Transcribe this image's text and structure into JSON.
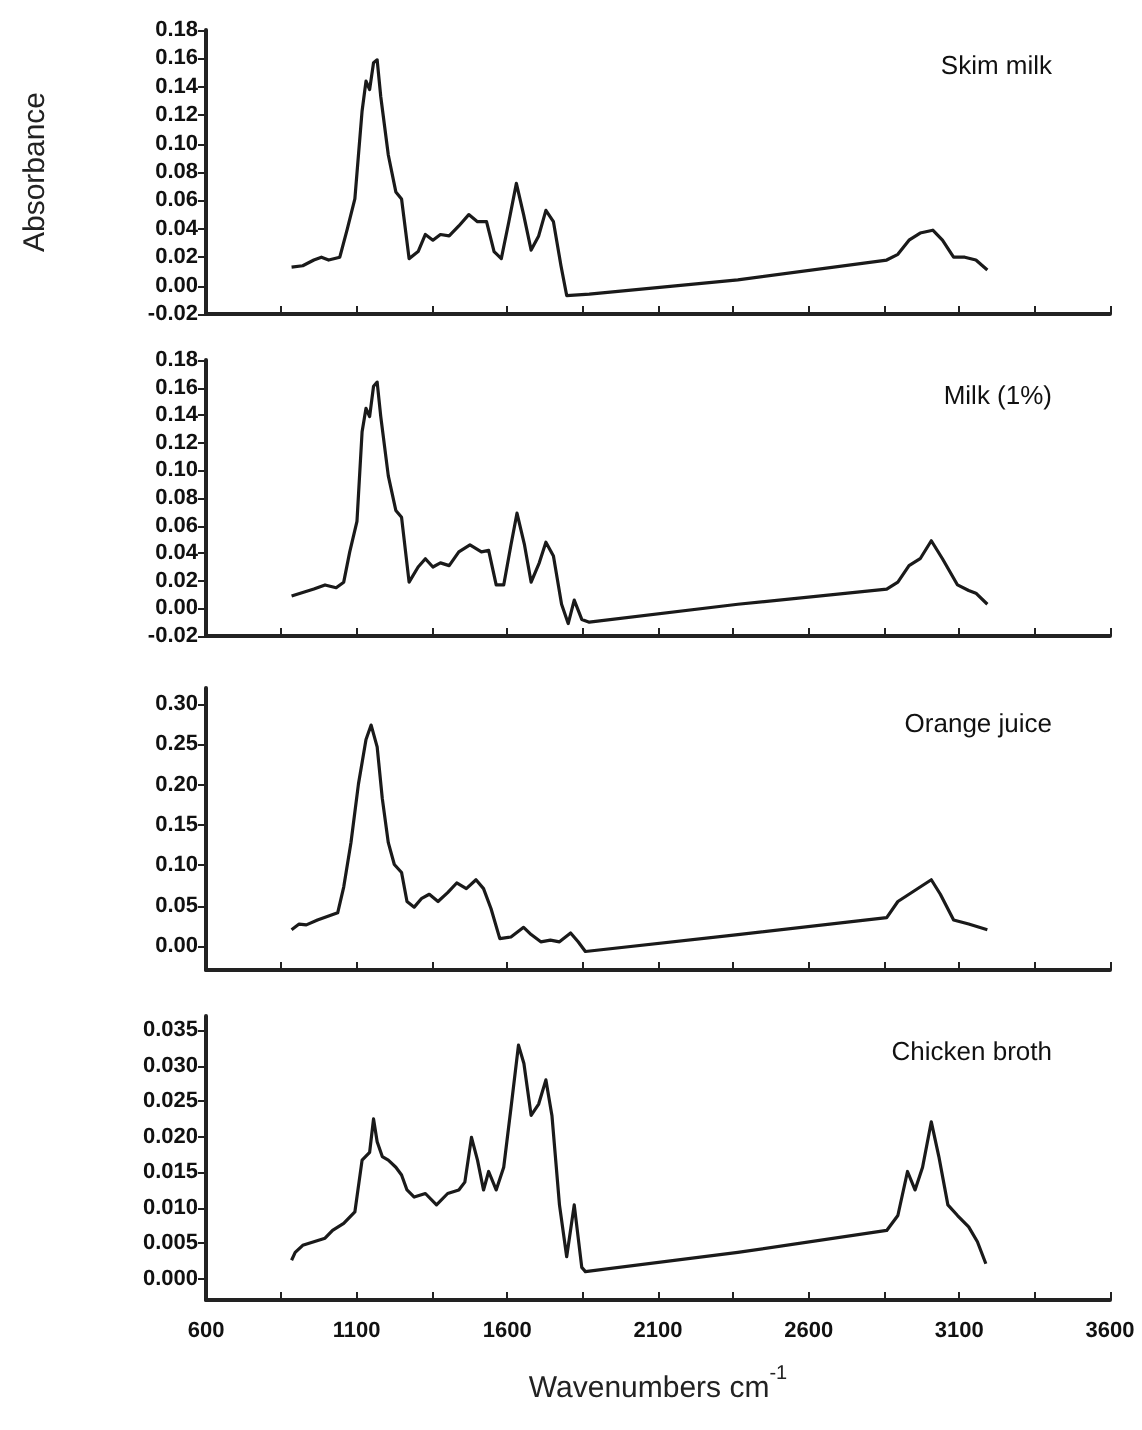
{
  "chart_data": [
    {
      "type": "line",
      "title": "Skim milk",
      "ylabel": "Absorbance",
      "color": "#1a1a1a",
      "marker": "none",
      "tick_labels": "y",
      "x": [
        884,
        921,
        958,
        983,
        1007,
        1044,
        1069,
        1094,
        1118,
        1131,
        1143,
        1156,
        1168,
        1180,
        1205,
        1230,
        1249,
        1274,
        1304,
        1328,
        1353,
        1378,
        1407,
        1439,
        1472,
        1501,
        1531,
        1556,
        1580,
        1605,
        1630,
        1654,
        1679,
        1704,
        1728,
        1753,
        1778,
        1797,
        1872,
        2365,
        2859,
        2896,
        2933,
        2970,
        3012,
        3044,
        3081,
        3118,
        3155,
        3193
      ],
      "values": [
        0.013,
        0.014,
        0.018,
        0.02,
        0.018,
        0.02,
        0.04,
        0.061,
        0.123,
        0.144,
        0.138,
        0.157,
        0.159,
        0.133,
        0.092,
        0.066,
        0.061,
        0.019,
        0.024,
        0.036,
        0.032,
        0.036,
        0.035,
        0.042,
        0.05,
        0.045,
        0.045,
        0.024,
        0.019,
        0.045,
        0.072,
        0.05,
        0.025,
        0.035,
        0.053,
        0.045,
        0.014,
        -0.007,
        -0.006,
        0.004,
        0.018,
        0.022,
        0.032,
        0.037,
        0.039,
        0.032,
        0.02,
        0.02,
        0.018,
        0.011
      ],
      "xlim": [
        600,
        3600
      ],
      "xticks": [
        600,
        {
          "value": 850,
          "label": null
        },
        {
          "value": 1100,
          "label": null
        },
        {
          "value": 1350,
          "label": null
        },
        {
          "value": 1600,
          "label": null
        },
        {
          "value": 1850,
          "label": null
        },
        {
          "value": 2100,
          "label": null
        },
        {
          "value": 2350,
          "label": null
        },
        {
          "value": 2600,
          "label": null
        },
        {
          "value": 2850,
          "label": null
        },
        {
          "value": 3100,
          "label": null
        },
        {
          "value": 3350,
          "label": null
        },
        {
          "value": 3600,
          "label": null
        }
      ],
      "ylim": [
        -0.02,
        0.18
      ],
      "yticks": [
        {
          "value": -0.02,
          "label": "-0.02"
        },
        {
          "value": 0,
          "label": "0.00"
        },
        {
          "value": 0.02,
          "label": "0.02"
        },
        {
          "value": 0.04,
          "label": "0.04"
        },
        {
          "value": 0.06,
          "label": "0.06"
        },
        {
          "value": 0.08,
          "label": "0.08"
        },
        {
          "value": 0.1,
          "label": "0.10"
        },
        {
          "value": 0.12,
          "label": "0.12"
        },
        {
          "value": 0.14,
          "label": "0.14"
        },
        {
          "value": 0.16,
          "label": "0.16"
        },
        {
          "value": 0.18,
          "label": "0.18"
        }
      ]
    },
    {
      "type": "line",
      "title": "Milk (1%)",
      "color": "#1a1a1a",
      "marker": "none",
      "tick_labels": "y",
      "x": [
        884,
        958,
        995,
        1032,
        1057,
        1077,
        1101,
        1118,
        1131,
        1143,
        1156,
        1168,
        1180,
        1205,
        1230,
        1249,
        1274,
        1304,
        1328,
        1353,
        1378,
        1407,
        1439,
        1476,
        1514,
        1538,
        1563,
        1588,
        1612,
        1632,
        1657,
        1679,
        1706,
        1728,
        1753,
        1780,
        1802,
        1822,
        1847,
        1872,
        2365,
        2859,
        2896,
        2933,
        2970,
        3007,
        3044,
        3094,
        3131,
        3155,
        3193
      ],
      "values": [
        0.009,
        0.014,
        0.017,
        0.015,
        0.019,
        0.041,
        0.063,
        0.128,
        0.145,
        0.139,
        0.161,
        0.164,
        0.139,
        0.096,
        0.071,
        0.066,
        0.019,
        0.03,
        0.036,
        0.03,
        0.033,
        0.031,
        0.041,
        0.046,
        0.041,
        0.042,
        0.017,
        0.017,
        0.046,
        0.069,
        0.046,
        0.019,
        0.033,
        0.048,
        0.038,
        0.003,
        -0.011,
        0.006,
        -0.008,
        -0.01,
        0.003,
        0.014,
        0.019,
        0.031,
        0.036,
        0.049,
        0.036,
        0.017,
        0.013,
        0.011,
        0.003
      ],
      "xlim": [
        600,
        3600
      ],
      "xticks": [
        600,
        {
          "value": 850,
          "label": null
        },
        {
          "value": 1100,
          "label": null
        },
        {
          "value": 1350,
          "label": null
        },
        {
          "value": 1600,
          "label": null
        },
        {
          "value": 1850,
          "label": null
        },
        {
          "value": 2100,
          "label": null
        },
        {
          "value": 2350,
          "label": null
        },
        {
          "value": 2600,
          "label": null
        },
        {
          "value": 2850,
          "label": null
        },
        {
          "value": 3100,
          "label": null
        },
        {
          "value": 3350,
          "label": null
        },
        {
          "value": 3600,
          "label": null
        }
      ],
      "ylim": [
        -0.02,
        0.18
      ],
      "yticks": [
        {
          "value": -0.02,
          "label": "-0.02"
        },
        {
          "value": 0,
          "label": "0.00"
        },
        {
          "value": 0.02,
          "label": "0.02"
        },
        {
          "value": 0.04,
          "label": "0.04"
        },
        {
          "value": 0.06,
          "label": "0.06"
        },
        {
          "value": 0.08,
          "label": "0.08"
        },
        {
          "value": 0.1,
          "label": "0.10"
        },
        {
          "value": 0.12,
          "label": "0.12"
        },
        {
          "value": 0.14,
          "label": "0.14"
        },
        {
          "value": 0.16,
          "label": "0.16"
        },
        {
          "value": 0.18,
          "label": "0.18"
        }
      ]
    },
    {
      "type": "line",
      "title": "Orange juice",
      "color": "#1a1a1a",
      "marker": "none",
      "tick_labels": "y",
      "x": [
        884,
        909,
        933,
        970,
        1007,
        1037,
        1057,
        1081,
        1106,
        1131,
        1148,
        1168,
        1185,
        1205,
        1225,
        1249,
        1267,
        1291,
        1316,
        1341,
        1370,
        1402,
        1432,
        1464,
        1496,
        1521,
        1546,
        1575,
        1612,
        1654,
        1679,
        1711,
        1743,
        1773,
        1810,
        1835,
        1859,
        2365,
        2859,
        2896,
        2933,
        2970,
        3007,
        3037,
        3081,
        3131,
        3193
      ],
      "values": [
        0.02,
        0.027,
        0.026,
        0.032,
        0.037,
        0.041,
        0.073,
        0.128,
        0.201,
        0.256,
        0.274,
        0.247,
        0.183,
        0.128,
        0.101,
        0.091,
        0.055,
        0.048,
        0.059,
        0.064,
        0.055,
        0.066,
        0.078,
        0.071,
        0.082,
        0.071,
        0.046,
        0.009,
        0.011,
        0.023,
        0.014,
        0.005,
        0.007,
        0.005,
        0.016,
        0.005,
        -0.007,
        0.014,
        0.035,
        0.055,
        0.064,
        0.073,
        0.082,
        0.064,
        0.032,
        0.027,
        0.02
      ],
      "xlim": [
        600,
        3600
      ],
      "xticks": [
        600,
        {
          "value": 850,
          "label": null
        },
        {
          "value": 1100,
          "label": null
        },
        {
          "value": 1350,
          "label": null
        },
        {
          "value": 1600,
          "label": null
        },
        {
          "value": 1850,
          "label": null
        },
        {
          "value": 2100,
          "label": null
        },
        {
          "value": 2350,
          "label": null
        },
        {
          "value": 2600,
          "label": null
        },
        {
          "value": 2850,
          "label": null
        },
        {
          "value": 3100,
          "label": null
        },
        {
          "value": 3350,
          "label": null
        },
        {
          "value": 3600,
          "label": null
        }
      ],
      "ylim": [
        -0.03,
        0.32
      ],
      "yticks": [
        {
          "value": 0,
          "label": "0.00"
        },
        {
          "value": 0.05,
          "label": "0.05"
        },
        {
          "value": 0.1,
          "label": "0.10"
        },
        {
          "value": 0.15,
          "label": "0.15"
        },
        {
          "value": 0.2,
          "label": "0.20"
        },
        {
          "value": 0.25,
          "label": "0.25"
        },
        {
          "value": 0.3,
          "label": "0.30"
        }
      ]
    },
    {
      "type": "line",
      "title": "Chicken broth",
      "xlabel": "Wavenumbers cm$^{-1}$",
      "color": "#1a1a1a",
      "marker": "none",
      "x": [
        884,
        896,
        921,
        958,
        995,
        1020,
        1057,
        1094,
        1118,
        1143,
        1156,
        1168,
        1185,
        1205,
        1230,
        1249,
        1267,
        1291,
        1328,
        1365,
        1402,
        1439,
        1459,
        1481,
        1501,
        1521,
        1538,
        1563,
        1588,
        1612,
        1637,
        1655,
        1679,
        1704,
        1728,
        1748,
        1773,
        1797,
        1822,
        1847,
        1859,
        2365,
        2859,
        2896,
        2928,
        2953,
        2978,
        3007,
        3032,
        3062,
        3094,
        3131,
        3160,
        3188
      ],
      "values": [
        0.0026,
        0.0037,
        0.0047,
        0.0052,
        0.0057,
        0.0068,
        0.0078,
        0.0094,
        0.0167,
        0.0178,
        0.0225,
        0.0193,
        0.0172,
        0.0167,
        0.0157,
        0.0146,
        0.0125,
        0.0115,
        0.012,
        0.0104,
        0.012,
        0.0125,
        0.0136,
        0.0199,
        0.0167,
        0.0125,
        0.0151,
        0.0125,
        0.0157,
        0.024,
        0.0329,
        0.0303,
        0.023,
        0.0246,
        0.028,
        0.023,
        0.0104,
        0.0031,
        0.0104,
        0.0016,
        0.001,
        0.0037,
        0.0068,
        0.0089,
        0.0151,
        0.0125,
        0.0157,
        0.0221,
        0.0172,
        0.0104,
        0.0089,
        0.0073,
        0.0052,
        0.0021
      ],
      "xlim": [
        600,
        3600
      ],
      "xticks": [
        600,
        {
          "value": 850,
          "label": null
        },
        1100,
        {
          "value": 1350,
          "label": null
        },
        1600,
        {
          "value": 1850,
          "label": null
        },
        2100,
        {
          "value": 2350,
          "label": null
        },
        2600,
        {
          "value": 2850,
          "label": null
        },
        3100,
        {
          "value": 3350,
          "label": null
        },
        3600
      ],
      "ylim": [
        -0.003,
        0.037
      ],
      "yticks": [
        {
          "value": 0,
          "label": "0.000"
        },
        {
          "value": 0.005,
          "label": "0.005"
        },
        {
          "value": 0.01,
          "label": "0.010"
        },
        {
          "value": 0.015,
          "label": "0.015"
        },
        {
          "value": 0.02,
          "label": "0.020"
        },
        {
          "value": 0.025,
          "label": "0.025"
        },
        {
          "value": 0.03,
          "label": "0.030"
        },
        {
          "value": 0.035,
          "label": "0.035"
        }
      ]
    }
  ]
}
